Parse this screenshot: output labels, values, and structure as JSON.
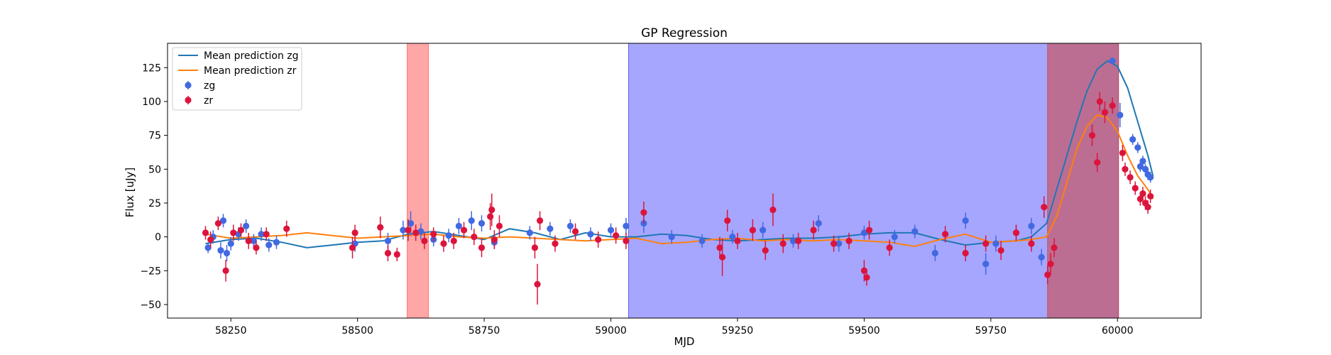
{
  "chart_data": {
    "type": "scatter",
    "title": "GP Regression",
    "xlabel": "MJD",
    "ylabel": "Flux [uJy]",
    "xlim": [
      58125,
      60165
    ],
    "ylim": [
      -60,
      143
    ],
    "xticks": [
      58250,
      58500,
      58750,
      59000,
      59250,
      59500,
      59750,
      60000
    ],
    "yticks": [
      -50,
      -25,
      0,
      25,
      50,
      75,
      100,
      125
    ],
    "grid": false,
    "legend_position": "top-left",
    "shaded_regions": [
      {
        "x0": 58598,
        "x1": 58640,
        "color": "#ff6b6b",
        "opacity": 0.6
      },
      {
        "x0": 59035,
        "x1": 60002,
        "color": "#5555ff",
        "opacity": 0.52
      },
      {
        "x0": 59862,
        "x1": 60002,
        "color": "#c94a4a",
        "opacity": 0.6
      }
    ],
    "series": [
      {
        "name": "Mean prediction zg",
        "kind": "line",
        "color": "#1f77b4",
        "x": [
          58200,
          58250,
          58300,
          58350,
          58400,
          58450,
          58500,
          58550,
          58600,
          58650,
          58700,
          58750,
          58800,
          58850,
          58900,
          58950,
          59000,
          59050,
          59100,
          59150,
          59200,
          59250,
          59300,
          59350,
          59400,
          59450,
          59500,
          59550,
          59600,
          59650,
          59700,
          59750,
          59800,
          59830,
          59860,
          59880,
          59900,
          59920,
          59940,
          59960,
          59980,
          60000,
          60020,
          60040,
          60060,
          60070
        ],
        "y": [
          -5,
          -2,
          -1,
          -4,
          -8,
          -6,
          -4,
          -3,
          2,
          4,
          1,
          -2,
          6,
          3,
          -2,
          3,
          0,
          0,
          2,
          1,
          -2,
          -3,
          -2,
          -1,
          -1,
          0,
          2,
          3,
          3,
          -2,
          -6,
          -4,
          -3,
          0,
          10,
          35,
          60,
          85,
          108,
          124,
          130,
          126,
          110,
          85,
          60,
          45
        ]
      },
      {
        "name": "Mean prediction zr",
        "kind": "line",
        "color": "#ff7f0e",
        "x": [
          58200,
          58250,
          58300,
          58350,
          58400,
          58450,
          58500,
          58550,
          58600,
          58650,
          58700,
          58750,
          58800,
          58850,
          58900,
          58950,
          59000,
          59050,
          59100,
          59150,
          59200,
          59250,
          59300,
          59350,
          59400,
          59450,
          59500,
          59550,
          59600,
          59650,
          59700,
          59750,
          59800,
          59830,
          59860,
          59880,
          59900,
          59920,
          59940,
          59960,
          59980,
          60000,
          60020,
          60040,
          60060,
          60070
        ],
        "y": [
          2,
          -1,
          0,
          1,
          3,
          1,
          -1,
          0,
          1,
          2,
          0,
          -1,
          0,
          -1,
          -2,
          -3,
          -2,
          -1,
          -5,
          -4,
          -2,
          -1,
          -3,
          -2,
          -3,
          -2,
          -3,
          -4,
          -7,
          -2,
          2,
          -4,
          -3,
          -2,
          0,
          15,
          40,
          65,
          82,
          90,
          88,
          78,
          60,
          45,
          35,
          28
        ]
      },
      {
        "name": "zg",
        "kind": "errorbar",
        "color": "#4169e1",
        "x": [
          58205,
          58215,
          58230,
          58235,
          58242,
          58250,
          58265,
          58280,
          58295,
          58310,
          58325,
          58340,
          58495,
          58560,
          58590,
          58605,
          58625,
          58650,
          58680,
          58700,
          58725,
          58745,
          58770,
          58840,
          58880,
          58920,
          58960,
          59000,
          59030,
          59065,
          59120,
          59180,
          59240,
          59300,
          59360,
          59410,
          59450,
          59500,
          59560,
          59600,
          59640,
          59700,
          59740,
          59760,
          59800,
          59830,
          59850,
          59990,
          60005,
          60030,
          60040,
          60045,
          60050,
          60055,
          60060,
          60065
        ],
        "y": [
          -8,
          0,
          -10,
          12,
          -12,
          -5,
          2,
          8,
          -3,
          2,
          -6,
          -4,
          -5,
          -3,
          5,
          10,
          4,
          -2,
          1,
          8,
          12,
          10,
          -4,
          3,
          6,
          8,
          2,
          5,
          8,
          10,
          0,
          -3,
          0,
          5,
          -3,
          10,
          -5,
          3,
          0,
          4,
          -12,
          12,
          -20,
          -5,
          3,
          8,
          -15,
          130,
          90,
          72,
          66,
          52,
          56,
          50,
          46,
          44
        ],
        "yerr": [
          4,
          5,
          6,
          5,
          6,
          5,
          5,
          5,
          5,
          5,
          5,
          5,
          6,
          6,
          7,
          9,
          6,
          5,
          5,
          6,
          7,
          6,
          5,
          5,
          5,
          5,
          5,
          5,
          6,
          7,
          5,
          5,
          5,
          6,
          5,
          6,
          6,
          5,
          5,
          5,
          6,
          6,
          8,
          6,
          5,
          6,
          6,
          2,
          9,
          4,
          4,
          4,
          4,
          4,
          4,
          4
        ]
      },
      {
        "name": "zr",
        "kind": "errorbar",
        "color": "#dc143c",
        "x": [
          58200,
          58210,
          58225,
          58240,
          58255,
          58270,
          58285,
          58300,
          58320,
          58360,
          58490,
          58495,
          58545,
          58560,
          58578,
          58600,
          58615,
          58632,
          58650,
          58670,
          58690,
          58710,
          58730,
          58745,
          58762,
          58765,
          58770,
          58780,
          58850,
          58855,
          58860,
          58890,
          58930,
          58975,
          59010,
          59030,
          59065,
          59215,
          59220,
          59230,
          59250,
          59280,
          59305,
          59320,
          59340,
          59370,
          59400,
          59440,
          59470,
          59500,
          59505,
          59510,
          59550,
          59660,
          59700,
          59740,
          59770,
          59800,
          59830,
          59855,
          59862,
          59868,
          59875,
          59950,
          59960,
          59965,
          59975,
          59990,
          60010,
          60015,
          60025,
          60035,
          60045,
          60050,
          60055,
          60060,
          60065
        ],
        "y": [
          3,
          -2,
          10,
          -25,
          3,
          5,
          -3,
          -8,
          2,
          6,
          -8,
          3,
          7,
          -12,
          -13,
          5,
          3,
          -3,
          2,
          -5,
          -3,
          5,
          0,
          -8,
          15,
          20,
          -2,
          8,
          -8,
          -35,
          12,
          -5,
          4,
          -2,
          1,
          -3,
          18,
          -8,
          -15,
          12,
          -3,
          5,
          -10,
          20,
          -5,
          -3,
          5,
          -5,
          -3,
          -25,
          -30,
          5,
          -8,
          2,
          -12,
          -5,
          -10,
          3,
          -5,
          22,
          -28,
          -20,
          -8,
          75,
          55,
          100,
          92,
          97,
          62,
          50,
          44,
          36,
          28,
          32,
          25,
          22,
          30
        ],
        "yerr": [
          5,
          6,
          5,
          8,
          6,
          5,
          6,
          5,
          5,
          6,
          8,
          6,
          8,
          6,
          5,
          8,
          6,
          6,
          5,
          6,
          6,
          6,
          6,
          7,
          10,
          12,
          7,
          8,
          8,
          15,
          7,
          6,
          6,
          6,
          6,
          6,
          8,
          8,
          14,
          8,
          6,
          8,
          7,
          12,
          7,
          6,
          7,
          6,
          6,
          8,
          6,
          7,
          6,
          6,
          6,
          6,
          7,
          6,
          6,
          8,
          7,
          8,
          7,
          8,
          7,
          7,
          8,
          6,
          6,
          5,
          5,
          5,
          5,
          5,
          5,
          5,
          5
        ]
      }
    ]
  }
}
